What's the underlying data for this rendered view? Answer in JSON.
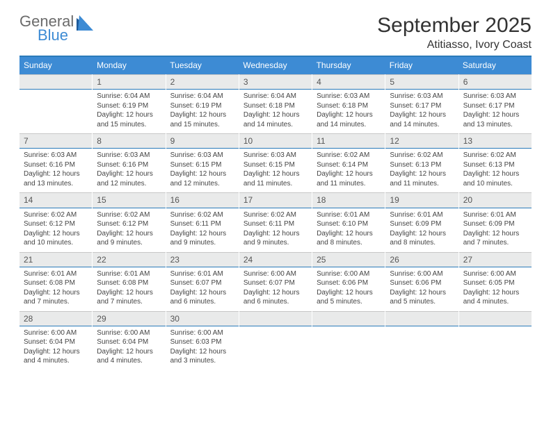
{
  "brand": {
    "line1": "General",
    "line2": "Blue"
  },
  "title": "September 2025",
  "location": "Atitiasso, Ivory Coast",
  "colors": {
    "header_bg": "#3d8bd4",
    "header_text": "#ffffff",
    "rule": "#2a7ab9",
    "daynum_bg": "#e9eaea",
    "daynum_text": "#555555",
    "body_text": "#444444",
    "page_bg": "#ffffff",
    "logo_gray": "#6b6b6b",
    "logo_blue": "#3d8bd4",
    "logo_triangle": "#1d5a9a"
  },
  "fonts": {
    "title_size_pt": 22,
    "location_size_pt": 12,
    "dayheader_size_pt": 9,
    "daynum_size_pt": 9,
    "body_size_pt": 7.5
  },
  "layout": {
    "columns": 7,
    "rows": 5,
    "first_weekday_index": 1
  },
  "day_names": [
    "Sunday",
    "Monday",
    "Tuesday",
    "Wednesday",
    "Thursday",
    "Friday",
    "Saturday"
  ],
  "days": [
    {
      "n": 1,
      "sunrise": "6:04 AM",
      "sunset": "6:19 PM",
      "daylight": "12 hours and 15 minutes."
    },
    {
      "n": 2,
      "sunrise": "6:04 AM",
      "sunset": "6:19 PM",
      "daylight": "12 hours and 15 minutes."
    },
    {
      "n": 3,
      "sunrise": "6:04 AM",
      "sunset": "6:18 PM",
      "daylight": "12 hours and 14 minutes."
    },
    {
      "n": 4,
      "sunrise": "6:03 AM",
      "sunset": "6:18 PM",
      "daylight": "12 hours and 14 minutes."
    },
    {
      "n": 5,
      "sunrise": "6:03 AM",
      "sunset": "6:17 PM",
      "daylight": "12 hours and 14 minutes."
    },
    {
      "n": 6,
      "sunrise": "6:03 AM",
      "sunset": "6:17 PM",
      "daylight": "12 hours and 13 minutes."
    },
    {
      "n": 7,
      "sunrise": "6:03 AM",
      "sunset": "6:16 PM",
      "daylight": "12 hours and 13 minutes."
    },
    {
      "n": 8,
      "sunrise": "6:03 AM",
      "sunset": "6:16 PM",
      "daylight": "12 hours and 12 minutes."
    },
    {
      "n": 9,
      "sunrise": "6:03 AM",
      "sunset": "6:15 PM",
      "daylight": "12 hours and 12 minutes."
    },
    {
      "n": 10,
      "sunrise": "6:03 AM",
      "sunset": "6:15 PM",
      "daylight": "12 hours and 11 minutes."
    },
    {
      "n": 11,
      "sunrise": "6:02 AM",
      "sunset": "6:14 PM",
      "daylight": "12 hours and 11 minutes."
    },
    {
      "n": 12,
      "sunrise": "6:02 AM",
      "sunset": "6:13 PM",
      "daylight": "12 hours and 11 minutes."
    },
    {
      "n": 13,
      "sunrise": "6:02 AM",
      "sunset": "6:13 PM",
      "daylight": "12 hours and 10 minutes."
    },
    {
      "n": 14,
      "sunrise": "6:02 AM",
      "sunset": "6:12 PM",
      "daylight": "12 hours and 10 minutes."
    },
    {
      "n": 15,
      "sunrise": "6:02 AM",
      "sunset": "6:12 PM",
      "daylight": "12 hours and 9 minutes."
    },
    {
      "n": 16,
      "sunrise": "6:02 AM",
      "sunset": "6:11 PM",
      "daylight": "12 hours and 9 minutes."
    },
    {
      "n": 17,
      "sunrise": "6:02 AM",
      "sunset": "6:11 PM",
      "daylight": "12 hours and 9 minutes."
    },
    {
      "n": 18,
      "sunrise": "6:01 AM",
      "sunset": "6:10 PM",
      "daylight": "12 hours and 8 minutes."
    },
    {
      "n": 19,
      "sunrise": "6:01 AM",
      "sunset": "6:09 PM",
      "daylight": "12 hours and 8 minutes."
    },
    {
      "n": 20,
      "sunrise": "6:01 AM",
      "sunset": "6:09 PM",
      "daylight": "12 hours and 7 minutes."
    },
    {
      "n": 21,
      "sunrise": "6:01 AM",
      "sunset": "6:08 PM",
      "daylight": "12 hours and 7 minutes."
    },
    {
      "n": 22,
      "sunrise": "6:01 AM",
      "sunset": "6:08 PM",
      "daylight": "12 hours and 7 minutes."
    },
    {
      "n": 23,
      "sunrise": "6:01 AM",
      "sunset": "6:07 PM",
      "daylight": "12 hours and 6 minutes."
    },
    {
      "n": 24,
      "sunrise": "6:00 AM",
      "sunset": "6:07 PM",
      "daylight": "12 hours and 6 minutes."
    },
    {
      "n": 25,
      "sunrise": "6:00 AM",
      "sunset": "6:06 PM",
      "daylight": "12 hours and 5 minutes."
    },
    {
      "n": 26,
      "sunrise": "6:00 AM",
      "sunset": "6:06 PM",
      "daylight": "12 hours and 5 minutes."
    },
    {
      "n": 27,
      "sunrise": "6:00 AM",
      "sunset": "6:05 PM",
      "daylight": "12 hours and 4 minutes."
    },
    {
      "n": 28,
      "sunrise": "6:00 AM",
      "sunset": "6:04 PM",
      "daylight": "12 hours and 4 minutes."
    },
    {
      "n": 29,
      "sunrise": "6:00 AM",
      "sunset": "6:04 PM",
      "daylight": "12 hours and 4 minutes."
    },
    {
      "n": 30,
      "sunrise": "6:00 AM",
      "sunset": "6:03 PM",
      "daylight": "12 hours and 3 minutes."
    }
  ],
  "labels": {
    "sunrise": "Sunrise:",
    "sunset": "Sunset:",
    "daylight": "Daylight:"
  }
}
